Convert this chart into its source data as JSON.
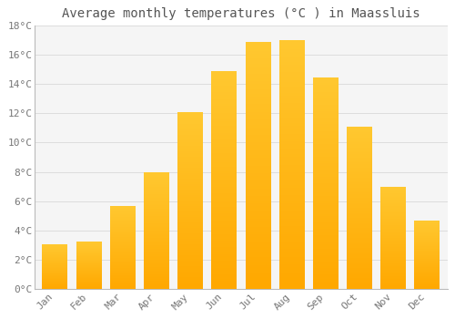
{
  "title": "Average monthly temperatures (°C ) in Maassluis",
  "months": [
    "Jan",
    "Feb",
    "Mar",
    "Apr",
    "May",
    "Jun",
    "Jul",
    "Aug",
    "Sep",
    "Oct",
    "Nov",
    "Dec"
  ],
  "temperatures": [
    3.0,
    3.2,
    5.6,
    7.9,
    12.0,
    14.8,
    16.8,
    16.9,
    14.4,
    11.0,
    6.9,
    4.6
  ],
  "bar_color_top": "#FFC830",
  "bar_color_bottom": "#FFA800",
  "background_color": "#FFFFFF",
  "plot_bg_color": "#F5F5F5",
  "grid_color": "#DDDDDD",
  "text_color": "#777777",
  "title_color": "#555555",
  "spine_color": "#BBBBBB",
  "ylim": [
    0,
    18
  ],
  "yticks": [
    0,
    2,
    4,
    6,
    8,
    10,
    12,
    14,
    16,
    18
  ],
  "title_fontsize": 10,
  "tick_fontsize": 8,
  "bar_width": 0.75,
  "gradient_steps": 100
}
